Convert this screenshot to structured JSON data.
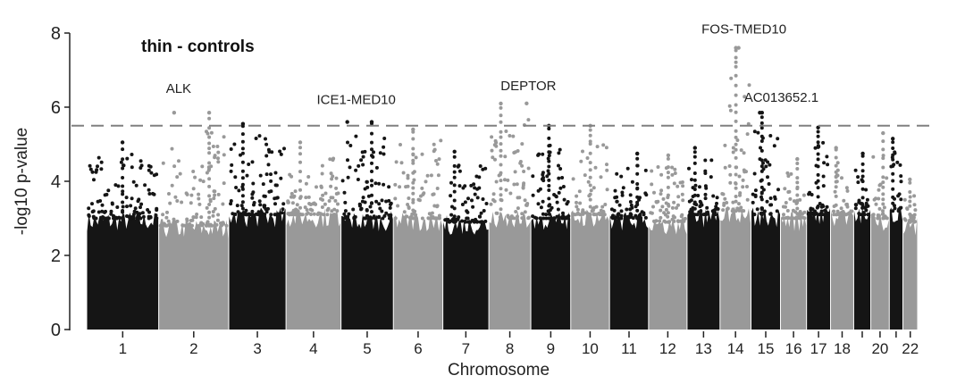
{
  "chart_data": {
    "type": "scatter",
    "subtype": "manhattan",
    "title": "thin - controls",
    "xlabel": "Chromosome",
    "ylabel": "-log10 p-value",
    "ylim": [
      0,
      8
    ],
    "yticks": [
      "0",
      "2",
      "4",
      "6",
      "8"
    ],
    "threshold": 5.5,
    "colors": {
      "odd": "#151515",
      "even": "#999999",
      "threshold": "#808080",
      "axis": "#222222"
    },
    "chromosomes": [
      {
        "name": "1",
        "label": "1",
        "length_mb": 249,
        "body": 3.0,
        "peak": 5.05
      },
      {
        "name": "2",
        "label": "2",
        "length_mb": 242,
        "body": 2.8,
        "peak": 5.85
      },
      {
        "name": "3",
        "label": "3",
        "length_mb": 198,
        "body": 3.1,
        "peak": 5.55
      },
      {
        "name": "4",
        "label": "4",
        "length_mb": 190,
        "body": 3.1,
        "peak": 5.05
      },
      {
        "name": "5",
        "label": "5",
        "length_mb": 181,
        "body": 3.0,
        "peak": 5.6
      },
      {
        "name": "6",
        "label": "6",
        "length_mb": 171,
        "body": 3.0,
        "peak": 5.4
      },
      {
        "name": "7",
        "label": "7",
        "length_mb": 159,
        "body": 2.9,
        "peak": 4.8
      },
      {
        "name": "8",
        "label": "8",
        "length_mb": 145,
        "body": 3.0,
        "peak": 6.1
      },
      {
        "name": "9",
        "label": "9",
        "length_mb": 138,
        "body": 3.0,
        "peak": 5.5
      },
      {
        "name": "10",
        "label": "10",
        "length_mb": 134,
        "body": 3.1,
        "peak": 5.5
      },
      {
        "name": "11",
        "label": "11",
        "length_mb": 135,
        "body": 3.0,
        "peak": 4.75
      },
      {
        "name": "12",
        "label": "12",
        "length_mb": 133,
        "body": 2.9,
        "peak": 4.7
      },
      {
        "name": "13",
        "label": "13",
        "length_mb": 114,
        "body": 3.1,
        "peak": 4.9
      },
      {
        "name": "14",
        "label": "14",
        "length_mb": 107,
        "body": 3.2,
        "peak": 7.6
      },
      {
        "name": "15",
        "label": "15",
        "length_mb": 102,
        "body": 3.1,
        "peak": 5.85
      },
      {
        "name": "16",
        "label": "16",
        "length_mb": 90,
        "body": 3.0,
        "peak": 4.6
      },
      {
        "name": "17",
        "label": "17",
        "length_mb": 83,
        "body": 3.1,
        "peak": 5.45
      },
      {
        "name": "18",
        "label": "18",
        "length_mb": 80,
        "body": 3.1,
        "peak": 4.9
      },
      {
        "name": "19",
        "label": "",
        "length_mb": 59,
        "body": 3.1,
        "peak": 4.75
      },
      {
        "name": "20",
        "label": "20",
        "length_mb": 64,
        "body": 3.0,
        "peak": 5.3
      },
      {
        "name": "21",
        "label": "",
        "length_mb": 47,
        "body": 3.2,
        "peak": 5.15
      },
      {
        "name": "22",
        "label": "22",
        "length_mb": 51,
        "body": 2.9,
        "peak": 4.05
      }
    ],
    "annotations": [
      {
        "gene": "ALK",
        "chromosome": "2",
        "pos_fraction": 0.22,
        "value": 5.85
      },
      {
        "gene": "ICE1-MED10",
        "chromosome": "5",
        "pos_fraction": 0.12,
        "value": 5.6
      },
      {
        "gene": "DEPTOR",
        "chromosome": "8",
        "pos_fraction": 0.9,
        "value": 6.1
      },
      {
        "gene": "FOS-TMED10",
        "chromosome": "14",
        "pos_fraction": 0.6,
        "value": 7.6
      },
      {
        "gene": "AC013652.1",
        "chromosome": "15",
        "pos_fraction": 0.3,
        "value": 5.85
      }
    ]
  }
}
